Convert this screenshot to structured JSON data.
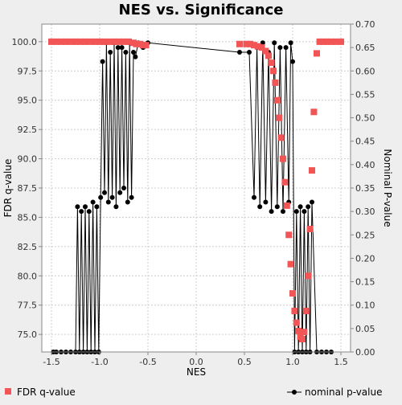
{
  "chart_data": {
    "type": "scatter",
    "title": "NES vs. Significance",
    "xlabel": "NES",
    "ylabel_left": "FDR q-value",
    "ylabel_right": "Nominal P-value",
    "xlim": [
      -1.6,
      1.6
    ],
    "ylim_left": [
      73.5,
      101.5
    ],
    "ylim_right": [
      0.0,
      0.7
    ],
    "x_ticks": [
      "-1.5",
      "-1.0",
      "-0.5",
      "0.0",
      "0.5",
      "1.0",
      "1.5"
    ],
    "x_tick_values": [
      -1.5,
      -1.0,
      -0.5,
      0.0,
      0.5,
      1.0,
      1.5
    ],
    "y_left_ticks": [
      "100.0",
      "97.5",
      "95.0",
      "92.5",
      "90.0",
      "87.5",
      "85.0",
      "82.5",
      "80.0",
      "77.5",
      "75.0"
    ],
    "y_left_tick_values": [
      100.0,
      97.5,
      95.0,
      92.5,
      90.0,
      87.5,
      85.0,
      82.5,
      80.0,
      77.5,
      75.0
    ],
    "y_right_ticks": [
      "0.70",
      "0.65",
      "0.60",
      "0.55",
      "0.50",
      "0.45",
      "0.40",
      "0.35",
      "0.30",
      "0.25",
      "0.20",
      "0.15",
      "0.10",
      "0.05",
      "0.00"
    ],
    "y_right_tick_values": [
      0.7,
      0.65,
      0.6,
      0.55,
      0.5,
      0.45,
      0.4,
      0.35,
      0.3,
      0.25,
      0.2,
      0.15,
      0.1,
      0.05,
      0.0
    ],
    "grid": true,
    "legend_position": "bottom",
    "series": [
      {
        "name": "FDR q-value",
        "axis": "left",
        "marker": "square",
        "color": "#f25555",
        "x": [
          -1.5,
          -1.45,
          -1.4,
          -1.35,
          -1.3,
          -1.25,
          -1.2,
          -1.15,
          -1.1,
          -1.05,
          -1.0,
          -0.95,
          -0.9,
          -0.85,
          -0.8,
          -0.75,
          -0.7,
          -0.65,
          -0.62,
          -0.58,
          -0.55,
          -0.52,
          0.45,
          0.52,
          0.56,
          0.6,
          0.64,
          0.68,
          0.72,
          0.75,
          0.78,
          0.8,
          0.82,
          0.84,
          0.86,
          0.88,
          0.9,
          0.92,
          0.94,
          0.96,
          0.98,
          1.0,
          1.02,
          1.04,
          1.06,
          1.08,
          1.1,
          1.12,
          1.14,
          1.16,
          1.18,
          1.2,
          1.22,
          1.25,
          1.28,
          1.32,
          1.36,
          1.4,
          1.45,
          1.5
        ],
        "y": [
          100.0,
          100.0,
          100.0,
          100.0,
          100.0,
          100.0,
          100.0,
          100.0,
          100.0,
          100.0,
          100.0,
          100.0,
          100.0,
          100.0,
          100.0,
          100.0,
          100.0,
          99.9,
          99.8,
          99.8,
          99.7,
          99.7,
          99.8,
          99.8,
          99.8,
          99.7,
          99.6,
          99.5,
          99.2,
          98.8,
          98.2,
          97.5,
          96.5,
          95.0,
          93.5,
          91.8,
          90.0,
          88.0,
          86.0,
          83.5,
          81.0,
          78.5,
          77.0,
          76.0,
          75.3,
          74.8,
          74.6,
          75.2,
          77.0,
          80.0,
          84.0,
          89.0,
          94.0,
          99.0,
          100.0,
          100.0,
          100.0,
          100.0,
          100.0,
          100.0
        ]
      },
      {
        "name": "nominal p-value",
        "axis": "right",
        "marker": "circle-line",
        "color": "#000000",
        "x": [
          -1.48,
          -1.45,
          -1.4,
          -1.35,
          -1.3,
          -1.25,
          -1.23,
          -1.21,
          -1.19,
          -1.17,
          -1.15,
          -1.13,
          -1.11,
          -1.09,
          -1.07,
          -1.05,
          -1.03,
          -1.01,
          -0.99,
          -0.97,
          -0.95,
          -0.93,
          -0.91,
          -0.89,
          -0.87,
          -0.85,
          -0.83,
          -0.81,
          -0.79,
          -0.77,
          -0.75,
          -0.73,
          -0.71,
          -0.69,
          -0.67,
          -0.65,
          -0.63,
          -0.6,
          -0.55,
          -0.5,
          0.45,
          0.55,
          0.6,
          0.63,
          0.66,
          0.69,
          0.72,
          0.75,
          0.78,
          0.81,
          0.84,
          0.87,
          0.9,
          0.93,
          0.96,
          0.98,
          1.0,
          1.02,
          1.04,
          1.06,
          1.08,
          1.1,
          1.12,
          1.14,
          1.16,
          1.18,
          1.2,
          1.25,
          1.3,
          1.35,
          1.4
        ],
        "y": [
          0.0,
          0.0,
          0.0,
          0.0,
          0.0,
          0.0,
          0.31,
          0.0,
          0.3,
          0.0,
          0.31,
          0.0,
          0.3,
          0.0,
          0.32,
          0.0,
          0.31,
          0.0,
          0.33,
          0.62,
          0.34,
          0.66,
          0.32,
          0.64,
          0.33,
          0.66,
          0.31,
          0.65,
          0.34,
          0.65,
          0.35,
          0.64,
          0.32,
          0.66,
          0.33,
          0.64,
          0.63,
          0.66,
          0.65,
          0.66,
          0.64,
          0.64,
          0.33,
          0.65,
          0.31,
          0.66,
          0.32,
          0.64,
          0.3,
          0.66,
          0.31,
          0.65,
          0.3,
          0.65,
          0.32,
          0.66,
          0.62,
          0.0,
          0.3,
          0.0,
          0.31,
          0.0,
          0.3,
          0.0,
          0.31,
          0.0,
          0.32,
          0.0,
          0.0,
          0.0,
          0.0
        ]
      }
    ]
  }
}
